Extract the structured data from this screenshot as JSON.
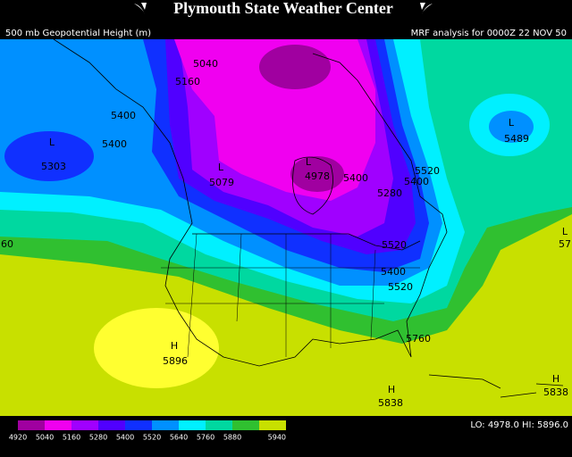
{
  "header": {
    "title": "Plymouth State Weather Center",
    "field": "500 mb Geopotential Height (m)",
    "analysis": "MRF analysis for 0000Z 22 NOV 50"
  },
  "contour_labels": [
    "5040",
    "5160",
    "5400",
    "5400",
    "L",
    "5303",
    "L",
    "5079",
    "L",
    "4978",
    "5400",
    "5520",
    "5400",
    "5280",
    "L",
    "5489",
    "60",
    "57",
    "L",
    "5520",
    "5400",
    "5520",
    "5760",
    "H",
    "5896",
    "H",
    "5838",
    "H",
    "5838"
  ],
  "colorbar": [
    {
      "label": "4920",
      "color": "#a000a0"
    },
    {
      "label": "5040",
      "color": "#f000f0"
    },
    {
      "label": "5160",
      "color": "#a000ff"
    },
    {
      "label": "5280",
      "color": "#5000ff"
    },
    {
      "label": "5400",
      "color": "#1030ff"
    },
    {
      "label": "5520",
      "color": "#0090ff"
    },
    {
      "label": "5640",
      "color": "#00f0ff"
    },
    {
      "label": "5760",
      "color": "#00d8a0"
    },
    {
      "label": "5880",
      "color": "#30c030"
    },
    {
      "label": "5940",
      "color": "#c8e000"
    }
  ],
  "extreme_color": "#ffff30",
  "footer": "LO: 4978.0  HI: 5896.0"
}
